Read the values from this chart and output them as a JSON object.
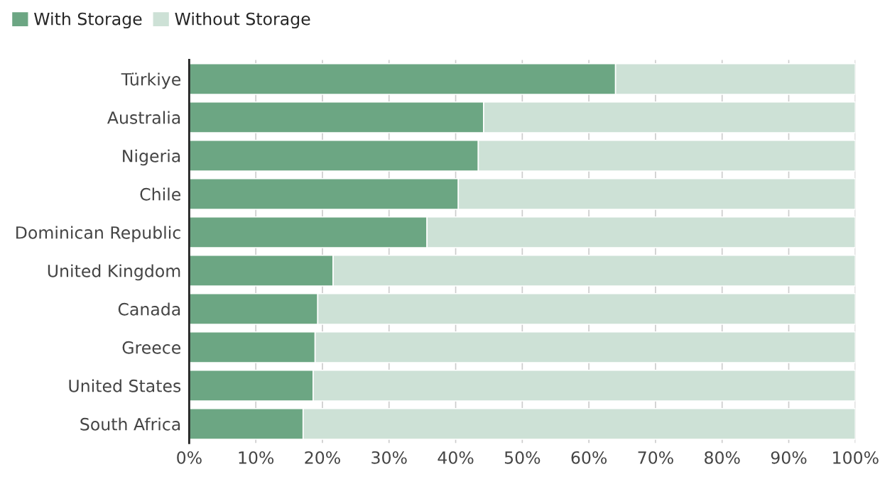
{
  "chart_data": {
    "type": "bar",
    "orientation": "horizontal",
    "stacked": true,
    "categories": [
      "Türkiye",
      "Australia",
      "Nigeria",
      "Chile",
      "Dominican Republic",
      "United Kingdom",
      "Canada",
      "Greece",
      "United States",
      "South Africa"
    ],
    "series": [
      {
        "name": "With Storage",
        "color": "#6ca683",
        "values": [
          64.0,
          44.2,
          43.4,
          40.4,
          35.7,
          21.6,
          19.3,
          18.9,
          18.6,
          17.1
        ]
      },
      {
        "name": "Without Storage",
        "color": "#cde1d6",
        "values": [
          36.0,
          55.8,
          56.6,
          59.6,
          64.3,
          78.4,
          80.7,
          81.1,
          81.4,
          82.9
        ]
      }
    ],
    "xlim": [
      0,
      100
    ],
    "xticks": [
      {
        "value": 0,
        "label": "0%"
      },
      {
        "value": 10,
        "label": "10%"
      },
      {
        "value": 20,
        "label": "20%"
      },
      {
        "value": 30,
        "label": "30%"
      },
      {
        "value": 40,
        "label": "40%"
      },
      {
        "value": 50,
        "label": "50%"
      },
      {
        "value": 60,
        "label": "60%"
      },
      {
        "value": 70,
        "label": "70%"
      },
      {
        "value": 80,
        "label": "80%"
      },
      {
        "value": 90,
        "label": "90%"
      },
      {
        "value": 100,
        "label": "100%"
      }
    ],
    "grid": "x",
    "legend": "top left"
  }
}
